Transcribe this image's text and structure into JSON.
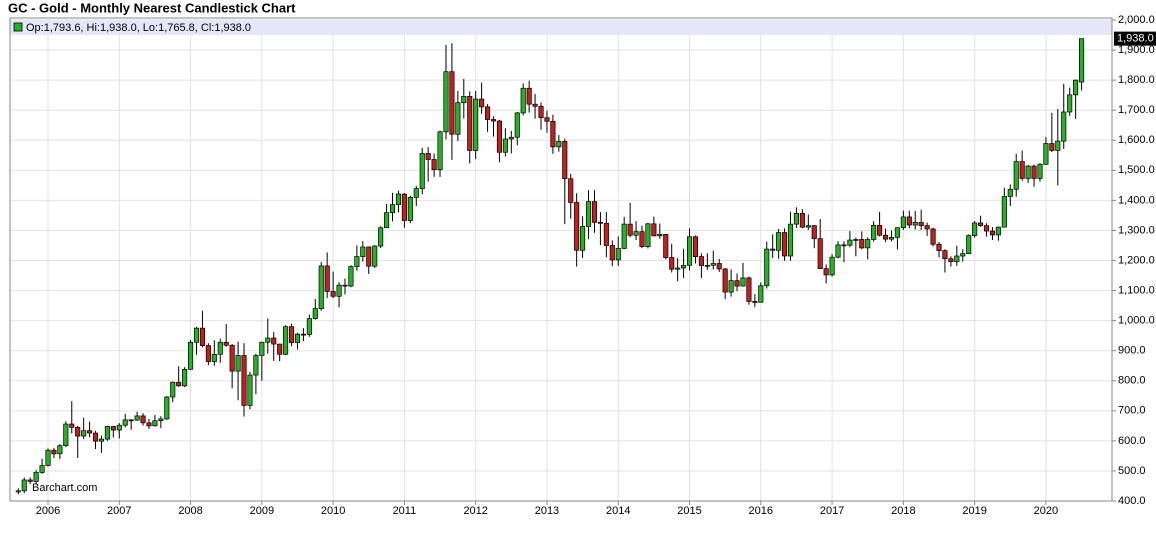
{
  "chart_data": {
    "type": "candlestick",
    "title": "GC - Gold - Monthly Nearest Candlestick Chart",
    "legend_text": "Op:1,793.6, Hi:1,938.0, Lo:1,765.8, Cl:1,938.0",
    "last_label": {
      "value": 1938,
      "label": "1,938.0"
    },
    "watermark": "Barchart.com",
    "up_color": "#22b422",
    "down_color": "#c41e1e",
    "grid": true,
    "ylim": [
      400,
      2000
    ],
    "yticks": [
      {
        "value": 400,
        "label": "400.0"
      },
      {
        "value": 500,
        "label": "500.0"
      },
      {
        "value": 600,
        "label": "600.0"
      },
      {
        "value": 700,
        "label": "700.0"
      },
      {
        "value": 800,
        "label": "800.0"
      },
      {
        "value": 900,
        "label": "900.0"
      },
      {
        "value": 1000,
        "label": "1,000.0"
      },
      {
        "value": 1100,
        "label": "1,100.0"
      },
      {
        "value": 1200,
        "label": "1,200.0"
      },
      {
        "value": 1300,
        "label": "1,300.0"
      },
      {
        "value": 1400,
        "label": "1,400.0"
      },
      {
        "value": 1500,
        "label": "1,500.0"
      },
      {
        "value": 1600,
        "label": "1,600.0"
      },
      {
        "value": 1700,
        "label": "1,700.0"
      },
      {
        "value": 1800,
        "label": "1,800.0"
      },
      {
        "value": 1900,
        "label": "1,900.0"
      },
      {
        "value": 2000,
        "label": "2,000.0"
      }
    ],
    "categories": [
      null,
      null,
      null,
      null,
      null,
      "2006",
      null,
      null,
      null,
      null,
      null,
      null,
      null,
      null,
      null,
      null,
      null,
      "2007",
      null,
      null,
      null,
      null,
      null,
      null,
      null,
      null,
      null,
      null,
      null,
      "2008",
      null,
      null,
      null,
      null,
      null,
      null,
      null,
      null,
      null,
      null,
      null,
      "2009",
      null,
      null,
      null,
      null,
      null,
      null,
      null,
      null,
      null,
      null,
      null,
      "2010",
      null,
      null,
      null,
      null,
      null,
      null,
      null,
      null,
      null,
      null,
      null,
      "2011",
      null,
      null,
      null,
      null,
      null,
      null,
      null,
      null,
      null,
      null,
      null,
      "2012",
      null,
      null,
      null,
      null,
      null,
      null,
      null,
      null,
      null,
      null,
      null,
      "2013",
      null,
      null,
      null,
      null,
      null,
      null,
      null,
      null,
      null,
      null,
      null,
      "2014",
      null,
      null,
      null,
      null,
      null,
      null,
      null,
      null,
      null,
      null,
      null,
      "2015",
      null,
      null,
      null,
      null,
      null,
      null,
      null,
      null,
      null,
      null,
      null,
      "2016",
      null,
      null,
      null,
      null,
      null,
      null,
      null,
      null,
      null,
      null,
      null,
      "2017",
      null,
      null,
      null,
      null,
      null,
      null,
      null,
      null,
      null,
      null,
      null,
      "2018",
      null,
      null,
      null,
      null,
      null,
      null,
      null,
      null,
      null,
      null,
      null,
      "2019",
      null,
      null,
      null,
      null,
      null,
      null,
      null,
      null,
      null,
      null,
      null,
      "2020",
      null,
      null,
      null,
      null,
      null,
      null
    ],
    "open": [
      430,
      434,
      470,
      465,
      495,
      518,
      569,
      557,
      584,
      656,
      645,
      616,
      634,
      626,
      599,
      606,
      648,
      636,
      652,
      670,
      669,
      683,
      660,
      650,
      667,
      673,
      746,
      795,
      783,
      838,
      928,
      975,
      917,
      864,
      888,
      928,
      918,
      832,
      884,
      718,
      819,
      884,
      928,
      942,
      922,
      888,
      980,
      927,
      955,
      954,
      1007,
      1040,
      1182,
      1097,
      1081,
      1118,
      1115,
      1180,
      1213,
      1245,
      1181,
      1248,
      1309,
      1359,
      1386,
      1421,
      1333,
      1410,
      1439,
      1556,
      1536,
      1502,
      1628,
      1828,
      1620,
      1725,
      1746,
      1566,
      1737,
      1711,
      1669,
      1664,
      1560,
      1604,
      1610,
      1691,
      1773,
      1720,
      1713,
      1675,
      1663,
      1578,
      1596,
      1472,
      1393,
      1234,
      1313,
      1396,
      1327,
      1324,
      1250,
      1202,
      1240,
      1321,
      1284,
      1296,
      1246,
      1322,
      1282,
      1287,
      1210,
      1171,
      1175,
      1184,
      1279,
      1213,
      1183,
      1184,
      1190,
      1172,
      1095,
      1133,
      1115,
      1142,
      1064,
      1061,
      1116,
      1238,
      1234,
      1293,
      1215,
      1321,
      1357,
      1311,
      1316,
      1273,
      1173,
      1152,
      1211,
      1252,
      1251,
      1268,
      1270,
      1242,
      1270,
      1317,
      1284,
      1271,
      1277,
      1309,
      1345,
      1318,
      1327,
      1316,
      1305,
      1254,
      1233,
      1206,
      1196,
      1215,
      1223,
      1283,
      1325,
      1316,
      1298,
      1285,
      1311,
      1413,
      1437,
      1529,
      1473,
      1514,
      1473,
      1520,
      1589,
      1566,
      1597,
      1694,
      1751,
      1793.6
    ],
    "high": [
      442,
      478,
      478,
      503,
      541,
      575,
      577,
      589,
      665,
      732,
      650,
      677,
      664,
      633,
      618,
      650,
      650,
      659,
      690,
      672,
      697,
      692,
      673,
      686,
      682,
      749,
      797,
      848,
      845,
      936,
      979,
      1033,
      925,
      935,
      940,
      989,
      922,
      930,
      925,
      830,
      890,
      930,
      1007,
      962,
      920,
      985,
      990,
      960,
      975,
      1020,
      1072,
      1195,
      1227,
      1163,
      1128,
      1140,
      1184,
      1250,
      1265,
      1247,
      1251,
      1314,
      1388,
      1425,
      1432,
      1424,
      1416,
      1448,
      1575,
      1577,
      1556,
      1632,
      1917,
      1923,
      1764,
      1804,
      1763,
      1764,
      1792,
      1720,
      1680,
      1668,
      1640,
      1631,
      1694,
      1789,
      1798,
      1754,
      1726,
      1698,
      1685,
      1617,
      1605,
      1488,
      1424,
      1347,
      1434,
      1434,
      1361,
      1361,
      1267,
      1280,
      1345,
      1392,
      1331,
      1316,
      1325,
      1346,
      1323,
      1288,
      1256,
      1208,
      1239,
      1307,
      1283,
      1224,
      1224,
      1233,
      1205,
      1175,
      1170,
      1157,
      1192,
      1147,
      1088,
      1127,
      1263,
      1287,
      1305,
      1307,
      1362,
      1377,
      1371,
      1353,
      1318,
      1338,
      1187,
      1221,
      1264,
      1264,
      1298,
      1276,
      1297,
      1277,
      1331,
      1362,
      1306,
      1300,
      1311,
      1366,
      1366,
      1365,
      1369,
      1326,
      1309,
      1262,
      1237,
      1214,
      1249,
      1238,
      1287,
      1331,
      1349,
      1324,
      1311,
      1313,
      1442,
      1453,
      1555,
      1566,
      1518,
      1519,
      1524,
      1611,
      1691,
      1704,
      1788,
      1775,
      1802,
      1938
    ],
    "low": [
      422,
      426,
      457,
      457,
      490,
      515,
      543,
      540,
      580,
      625,
      543,
      606,
      612,
      573,
      560,
      600,
      611,
      608,
      645,
      637,
      667,
      651,
      640,
      648,
      642,
      670,
      729,
      780,
      779,
      836,
      886,
      911,
      852,
      850,
      860,
      913,
      775,
      735,
      681,
      705,
      755,
      800,
      890,
      866,
      865,
      885,
      915,
      904,
      932,
      946,
      1003,
      1033,
      1075,
      1075,
      1044,
      1087,
      1111,
      1166,
      1196,
      1155,
      1175,
      1241,
      1310,
      1330,
      1360,
      1309,
      1324,
      1381,
      1420,
      1462,
      1478,
      1478,
      1603,
      1535,
      1598,
      1672,
      1523,
      1537,
      1688,
      1628,
      1612,
      1527,
      1546,
      1556,
      1583,
      1683,
      1692,
      1672,
      1635,
      1625,
      1555,
      1562,
      1321,
      1339,
      1180,
      1208,
      1271,
      1292,
      1251,
      1211,
      1181,
      1182,
      1238,
      1277,
      1268,
      1241,
      1240,
      1280,
      1272,
      1204,
      1160,
      1131,
      1142,
      1167,
      1190,
      1142,
      1169,
      1170,
      1162,
      1072,
      1080,
      1098,
      1113,
      1053,
      1045,
      1061,
      1107,
      1208,
      1206,
      1199,
      1199,
      1308,
      1307,
      1302,
      1241,
      1172,
      1124,
      1147,
      1208,
      1194,
      1244,
      1214,
      1237,
      1204,
      1263,
      1280,
      1261,
      1264,
      1237,
      1302,
      1307,
      1303,
      1301,
      1282,
      1247,
      1211,
      1160,
      1180,
      1182,
      1196,
      1221,
      1276,
      1312,
      1280,
      1268,
      1266,
      1310,
      1381,
      1412,
      1465,
      1458,
      1445,
      1462,
      1518,
      1561,
      1450,
      1571,
      1681,
      1671,
      1765.8
    ],
    "close": [
      434,
      470,
      465,
      495,
      518,
      569,
      557,
      584,
      656,
      645,
      616,
      634,
      626,
      599,
      606,
      648,
      636,
      652,
      670,
      669,
      683,
      660,
      650,
      667,
      673,
      746,
      795,
      783,
      838,
      928,
      975,
      917,
      864,
      888,
      928,
      918,
      832,
      884,
      718,
      819,
      884,
      928,
      942,
      922,
      888,
      980,
      927,
      955,
      954,
      1007,
      1040,
      1182,
      1097,
      1081,
      1118,
      1115,
      1180,
      1213,
      1245,
      1181,
      1248,
      1309,
      1359,
      1386,
      1421,
      1333,
      1410,
      1439,
      1556,
      1536,
      1502,
      1628,
      1828,
      1620,
      1725,
      1746,
      1566,
      1737,
      1711,
      1669,
      1664,
      1560,
      1604,
      1610,
      1691,
      1773,
      1720,
      1713,
      1675,
      1663,
      1578,
      1596,
      1472,
      1393,
      1234,
      1313,
      1396,
      1327,
      1324,
      1250,
      1202,
      1240,
      1321,
      1284,
      1296,
      1246,
      1322,
      1282,
      1287,
      1210,
      1171,
      1175,
      1184,
      1279,
      1213,
      1183,
      1184,
      1190,
      1172,
      1095,
      1133,
      1115,
      1142,
      1064,
      1061,
      1116,
      1238,
      1234,
      1293,
      1215,
      1321,
      1357,
      1311,
      1316,
      1273,
      1173,
      1152,
      1211,
      1252,
      1251,
      1268,
      1270,
      1242,
      1270,
      1317,
      1284,
      1271,
      1277,
      1309,
      1345,
      1318,
      1327,
      1316,
      1305,
      1254,
      1233,
      1206,
      1196,
      1215,
      1223,
      1283,
      1325,
      1316,
      1298,
      1285,
      1311,
      1413,
      1437,
      1529,
      1473,
      1514,
      1473,
      1520,
      1589,
      1566,
      1597,
      1694,
      1751,
      1800,
      1938
    ]
  }
}
